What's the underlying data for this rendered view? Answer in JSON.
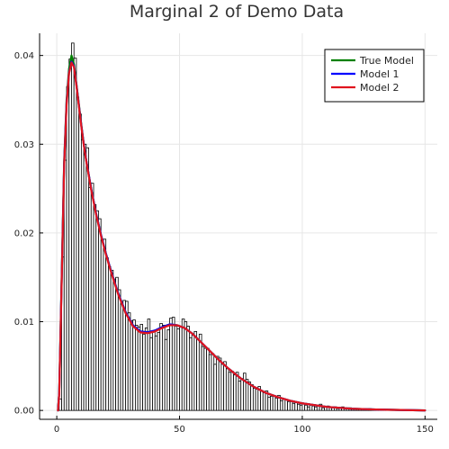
{
  "chart_data": {
    "type": "bar+line",
    "title": "Marginal 2 of Demo Data",
    "xlabel": "",
    "ylabel": "",
    "xlim": [
      -7,
      155
    ],
    "ylim": [
      -0.001,
      0.0425
    ],
    "xticks": [
      0,
      50,
      100,
      150
    ],
    "yticks": [
      0.0,
      0.01,
      0.02,
      0.03,
      0.04
    ],
    "ytick_labels": [
      "0.00",
      "0.01",
      "0.02",
      "0.03",
      "0.04"
    ],
    "grid": true,
    "legend_position": "top-right",
    "histogram": {
      "bin_start": 1,
      "bin_width": 1,
      "values": [
        0.0013,
        0.0173,
        0.0282,
        0.0365,
        0.0396,
        0.0414,
        0.0397,
        0.0353,
        0.0334,
        0.0305,
        0.03,
        0.0296,
        0.0251,
        0.0256,
        0.0232,
        0.0225,
        0.0216,
        0.0192,
        0.0193,
        0.0172,
        0.0162,
        0.0158,
        0.0148,
        0.015,
        0.0136,
        0.012,
        0.0124,
        0.0123,
        0.011,
        0.0101,
        0.0102,
        0.0096,
        0.0094,
        0.0097,
        0.0086,
        0.0093,
        0.0103,
        0.0082,
        0.0089,
        0.0084,
        0.0088,
        0.0098,
        0.0096,
        0.008,
        0.0091,
        0.0104,
        0.0105,
        0.0095,
        0.0092,
        0.0094,
        0.0103,
        0.01,
        0.0095,
        0.0082,
        0.0085,
        0.0089,
        0.008,
        0.0086,
        0.0072,
        0.007,
        0.007,
        0.0063,
        0.0064,
        0.0052,
        0.0061,
        0.0059,
        0.0052,
        0.0055,
        0.0047,
        0.0043,
        0.0044,
        0.004,
        0.0043,
        0.0033,
        0.0036,
        0.0042,
        0.0035,
        0.0032,
        0.0029,
        0.0025,
        0.0024,
        0.0027,
        0.0022,
        0.002,
        0.0022,
        0.0015,
        0.0016,
        0.0017,
        0.0014,
        0.0017,
        0.0011,
        0.0013,
        0.0012,
        0.001,
        0.001,
        0.0008,
        0.0009,
        0.0007,
        0.0006,
        0.0008,
        0.0006,
        0.0004,
        0.0006,
        0.0005,
        0.0004,
        0.0005,
        0.0007,
        0.0003,
        0.0004,
        0.0005,
        0.0003,
        0.0003,
        0.0004,
        0.0002,
        0.0003,
        0.0004,
        0.0002,
        0.0002,
        0.0003,
        0.0002,
        0.0002,
        0.0001,
        0.0002,
        0.0002,
        0.0001,
        0.0001,
        0.0002,
        0.0001,
        0.0001,
        0.0001,
        0.0001,
        0.0001,
        0.0001,
        0.0001,
        0.0001,
        0.0001,
        0.0,
        0.0001,
        0.0001,
        0.0
      ]
    },
    "series": [
      {
        "name": "True Model",
        "color": "#008000",
        "x": [
          0.5,
          1,
          2,
          3,
          4,
          5,
          6,
          7,
          8,
          9,
          10,
          11,
          12,
          14,
          16,
          18,
          20,
          22,
          25,
          28,
          31,
          34,
          37,
          40,
          43,
          46,
          49,
          52,
          55,
          58,
          62,
          66,
          70,
          75,
          80,
          85,
          90,
          95,
          100,
          110,
          120,
          130,
          140,
          150
        ],
        "y": [
          0.0,
          0.002,
          0.015,
          0.028,
          0.035,
          0.0385,
          0.04,
          0.039,
          0.0368,
          0.0345,
          0.0322,
          0.03,
          0.0282,
          0.025,
          0.0222,
          0.0198,
          0.0177,
          0.0158,
          0.0132,
          0.0111,
          0.0096,
          0.0089,
          0.0088,
          0.009,
          0.0094,
          0.0097,
          0.0096,
          0.0093,
          0.0087,
          0.0079,
          0.0068,
          0.0057,
          0.0047,
          0.0036,
          0.0027,
          0.002,
          0.0015,
          0.0011,
          0.0008,
          0.0004,
          0.0002,
          0.0001,
          5e-05,
          0.0
        ]
      },
      {
        "name": "Model 1",
        "color": "#0000ff",
        "x": [
          0.5,
          1,
          2,
          3,
          4,
          5,
          6,
          7,
          8,
          9,
          10,
          11,
          12,
          14,
          16,
          18,
          20,
          22,
          25,
          28,
          31,
          34,
          37,
          40,
          43,
          46,
          49,
          52,
          55,
          58,
          62,
          66,
          70,
          75,
          80,
          85,
          90,
          95,
          100,
          110,
          120,
          130,
          140,
          150
        ],
        "y": [
          0.0,
          0.002,
          0.0148,
          0.0277,
          0.0347,
          0.0381,
          0.0393,
          0.0388,
          0.0367,
          0.0344,
          0.0321,
          0.03,
          0.0282,
          0.025,
          0.0222,
          0.0198,
          0.0177,
          0.0158,
          0.0132,
          0.0111,
          0.0096,
          0.0089,
          0.0088,
          0.009,
          0.0094,
          0.0097,
          0.0096,
          0.0093,
          0.0087,
          0.0079,
          0.0068,
          0.0057,
          0.0047,
          0.0036,
          0.0027,
          0.002,
          0.0015,
          0.0011,
          0.0008,
          0.0004,
          0.0002,
          0.0001,
          5e-05,
          0.0
        ]
      },
      {
        "name": "Model 2",
        "color": "#e0141e",
        "x": [
          0.5,
          1,
          2,
          3,
          4,
          5,
          6,
          7,
          8,
          9,
          10,
          11,
          12,
          14,
          16,
          18,
          20,
          22,
          25,
          28,
          31,
          34,
          37,
          40,
          43,
          46,
          49,
          52,
          55,
          58,
          62,
          66,
          70,
          75,
          80,
          85,
          90,
          95,
          100,
          110,
          120,
          130,
          140,
          150
        ],
        "y": [
          0.0,
          0.0019,
          0.0146,
          0.0275,
          0.0345,
          0.038,
          0.0392,
          0.0387,
          0.0366,
          0.0343,
          0.032,
          0.0299,
          0.0281,
          0.0249,
          0.0221,
          0.0197,
          0.0176,
          0.0157,
          0.0131,
          0.011,
          0.0095,
          0.0088,
          0.0087,
          0.0089,
          0.0093,
          0.0096,
          0.0096,
          0.0093,
          0.0087,
          0.0079,
          0.0068,
          0.0057,
          0.0047,
          0.0036,
          0.0027,
          0.002,
          0.0015,
          0.0011,
          0.0008,
          0.0004,
          0.0002,
          0.0001,
          5e-05,
          0.0
        ]
      }
    ]
  }
}
